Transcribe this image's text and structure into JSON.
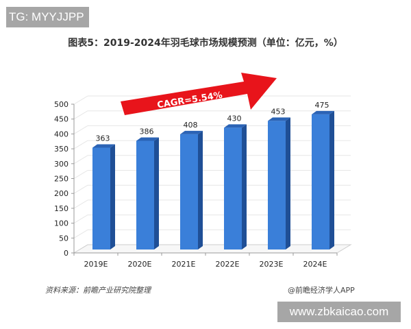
{
  "watermarks": {
    "top_left": "TG: MYYJJPP",
    "bottom_right": "www.zbkaicao.com"
  },
  "title": "图表5：2019-2024年羽毛球市场规模预测（单位：亿元，%）",
  "annotation": {
    "label": "CAGR=5.54%",
    "color": "#e8141b"
  },
  "footer": {
    "source": "资料来源：前瞻产业研究院整理",
    "brand": "@前瞻经济学人APP"
  },
  "colors": {
    "bar_front": "#3a7fd9",
    "bar_side": "#1f4f96",
    "bar_top": "#2b63b5",
    "grid": "#e6e6e6",
    "axis": "#999999"
  },
  "chart_data": {
    "type": "bar",
    "title": "图表5：2019-2024年羽毛球市场规模预测（单位：亿元，%）",
    "categories": [
      "2019E",
      "2020E",
      "2021E",
      "2022E",
      "2023E",
      "2024E"
    ],
    "values": [
      363,
      386,
      408,
      430,
      453,
      475
    ],
    "data_labels": [
      "363",
      "386",
      "408",
      "430",
      "453",
      "475"
    ],
    "xlabel": "",
    "ylabel": "",
    "ylim": [
      0,
      500
    ],
    "yticks": [
      "0",
      "50",
      "100",
      "150",
      "200",
      "250",
      "300",
      "350",
      "400",
      "450",
      "500"
    ],
    "grid": true,
    "legend": "none",
    "style": "3d-column",
    "annotation": "CAGR=5.54%"
  }
}
